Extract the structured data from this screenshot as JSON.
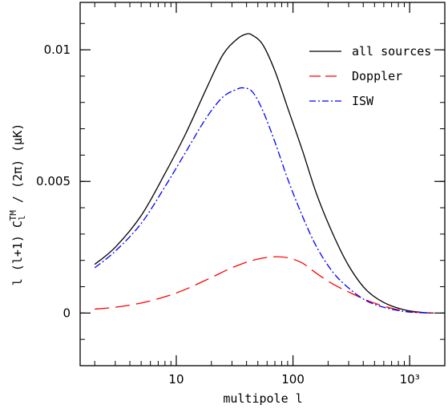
{
  "chart_data": {
    "type": "line",
    "title": "",
    "xlabel": "multipole l",
    "ylabel": "l (l+1) C_l^TM / (2π)  (μK)",
    "ylabel_parts": {
      "prefix": "l (l+1) C",
      "subscript": "l",
      "superscript": "TM",
      "suffix": " / (2π)  (μK)"
    },
    "x_scale": "log",
    "xlim": [
      1.5,
      2000
    ],
    "ylim": [
      -0.002,
      0.0118
    ],
    "x_ticks": [
      {
        "value": 10,
        "label": "10"
      },
      {
        "value": 100,
        "label": "100"
      },
      {
        "value": 1000,
        "label": "10³"
      }
    ],
    "y_ticks": [
      {
        "value": 0,
        "label": "0"
      },
      {
        "value": 0.005,
        "label": "0.005"
      },
      {
        "value": 0.01,
        "label": "0.01"
      }
    ],
    "grid": false,
    "legend_position": "top-right",
    "series": [
      {
        "name": "all sources",
        "color": "#000000",
        "dash": "solid",
        "x": [
          2,
          3,
          5,
          8,
          12,
          18,
          25,
          33,
          40,
          45,
          55,
          70,
          90,
          120,
          160,
          220,
          300,
          420,
          600,
          900,
          1300,
          1600
        ],
        "y": [
          0.00185,
          0.0025,
          0.0037,
          0.0053,
          0.0068,
          0.0085,
          0.0098,
          0.0104,
          0.0106,
          0.01055,
          0.0102,
          0.0092,
          0.0078,
          0.0062,
          0.0045,
          0.003,
          0.0018,
          0.0009,
          0.0004,
          0.00012,
          2e-05,
          0.0
        ]
      },
      {
        "name": "Doppler",
        "color": "#ff0000",
        "dash": "long-dash",
        "x": [
          2,
          3,
          5,
          8,
          12,
          20,
          30,
          45,
          65,
          90,
          120,
          160,
          220,
          300,
          450,
          700,
          1000,
          1600
        ],
        "y": [
          0.00015,
          0.00022,
          0.00038,
          0.00062,
          0.0009,
          0.00135,
          0.00172,
          0.002,
          0.00213,
          0.0021,
          0.0019,
          0.0015,
          0.0011,
          0.0008,
          0.00045,
          0.00018,
          5e-05,
          0.0
        ]
      },
      {
        "name": "ISW",
        "color": "#0000ff",
        "dash": "dash-dot",
        "x": [
          2,
          3,
          5,
          8,
          12,
          18,
          25,
          33,
          38,
          45,
          55,
          70,
          90,
          120,
          160,
          220,
          300,
          420,
          600,
          900,
          1300,
          1600
        ],
        "y": [
          0.00172,
          0.00235,
          0.0034,
          0.0048,
          0.0061,
          0.0074,
          0.0082,
          0.0085,
          0.00855,
          0.0084,
          0.0077,
          0.0065,
          0.0051,
          0.0037,
          0.0025,
          0.00155,
          0.00095,
          0.00048,
          0.00022,
          6e-05,
          1e-05,
          0.0
        ]
      }
    ]
  }
}
